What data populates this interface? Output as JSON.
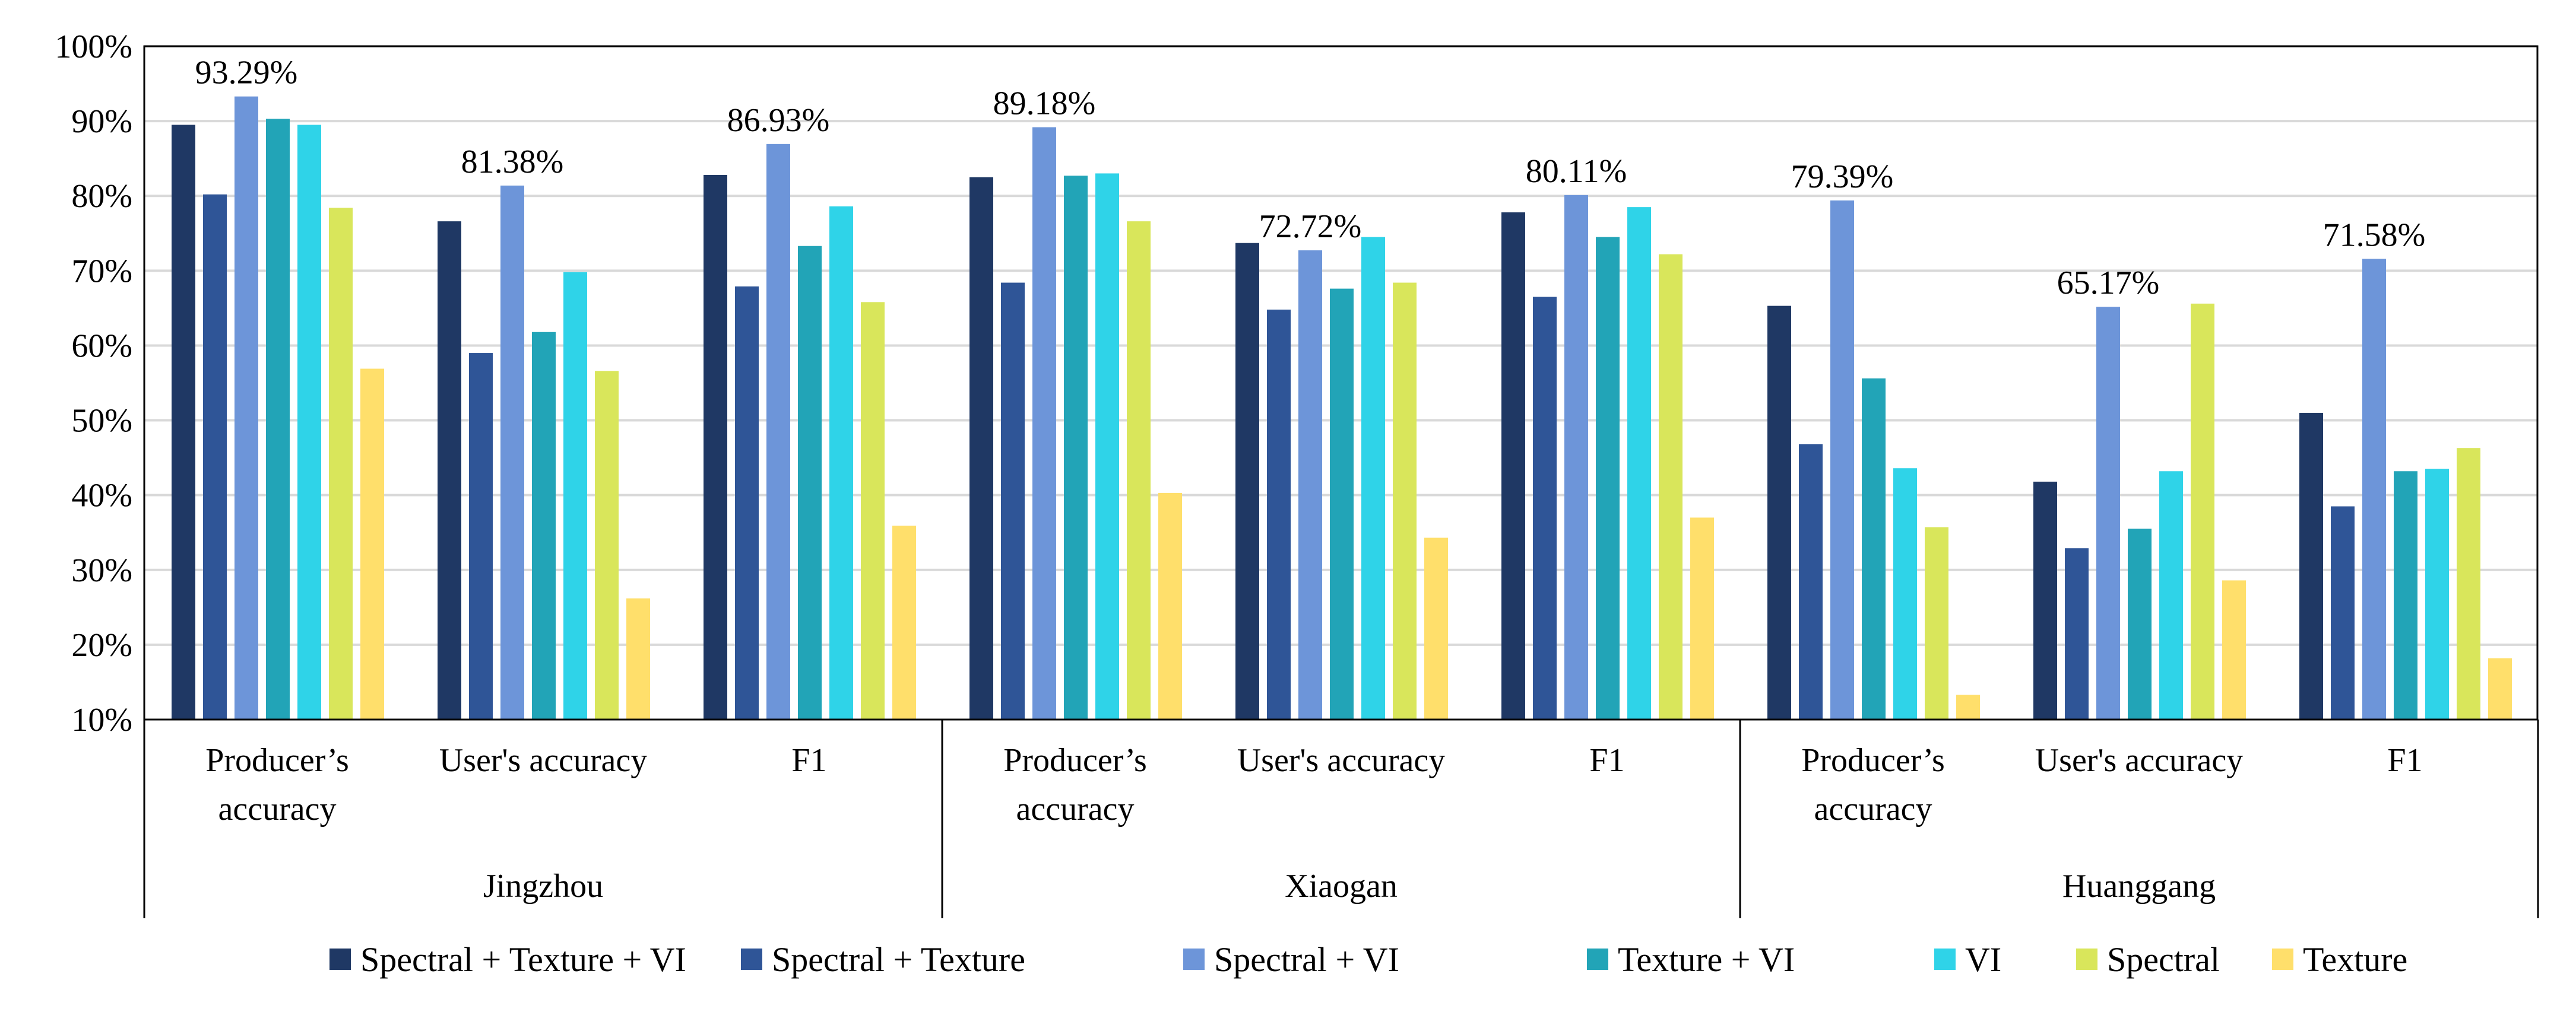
{
  "chart_data": {
    "type": "bar",
    "title": "",
    "xlabel": "",
    "ylabel": "",
    "ylim": [
      10,
      100
    ],
    "y_ticks": [
      "10%",
      "20%",
      "30%",
      "40%",
      "50%",
      "60%",
      "70%",
      "80%",
      "90%",
      "100%"
    ],
    "y_tick_values": [
      10,
      20,
      30,
      40,
      50,
      60,
      70,
      80,
      90,
      100
    ],
    "grid": true,
    "legend_position": "bottom",
    "groups": [
      {
        "name": "Jingzhou",
        "categories": [
          {
            "label_lines": [
              "Producer’s",
              "accuracy"
            ]
          },
          {
            "label_lines": [
              "User's accuracy"
            ]
          },
          {
            "label_lines": [
              "F1"
            ]
          }
        ]
      },
      {
        "name": "Xiaogan",
        "categories": [
          {
            "label_lines": [
              "Producer’s",
              "accuracy"
            ]
          },
          {
            "label_lines": [
              "User's accuracy"
            ]
          },
          {
            "label_lines": [
              "F1"
            ]
          }
        ]
      },
      {
        "name": "Huanggang",
        "categories": [
          {
            "label_lines": [
              "Producer’s",
              "accuracy"
            ]
          },
          {
            "label_lines": [
              "User's accuracy"
            ]
          },
          {
            "label_lines": [
              "F1"
            ]
          }
        ]
      }
    ],
    "series": [
      {
        "name": "Spectral + Texture + VI",
        "color": "#1f3864",
        "values": [
          89.5,
          76.6,
          82.8,
          82.5,
          73.7,
          77.8,
          65.3,
          41.8,
          51.0
        ]
      },
      {
        "name": "Spectral + Texture",
        "color": "#2f5597",
        "values": [
          80.2,
          59.0,
          67.9,
          68.4,
          64.8,
          66.5,
          46.8,
          32.9,
          38.5
        ]
      },
      {
        "name": "Spectral + VI",
        "color": "#6d95d9",
        "values": [
          93.29,
          81.38,
          86.93,
          89.18,
          72.72,
          80.11,
          79.39,
          65.17,
          71.58
        ]
      },
      {
        "name": "Texture + VI",
        "color": "#22a4b7",
        "values": [
          90.3,
          61.8,
          73.3,
          82.7,
          67.6,
          74.5,
          55.6,
          35.5,
          43.2
        ]
      },
      {
        "name": "VI",
        "color": "#2fd3e8",
        "values": [
          89.5,
          69.8,
          78.6,
          83.0,
          74.5,
          78.5,
          43.6,
          43.2,
          43.5
        ]
      },
      {
        "name": "Spectral",
        "color": "#d9e65b",
        "values": [
          78.4,
          56.6,
          65.8,
          76.6,
          68.4,
          72.2,
          35.7,
          65.6,
          46.3
        ]
      },
      {
        "name": "Texture",
        "color": "#ffdf6b",
        "values": [
          56.9,
          26.2,
          35.9,
          40.3,
          34.3,
          37.0,
          13.3,
          28.6,
          18.2
        ]
      }
    ],
    "annotations": [
      {
        "text": "93.29%",
        "category_index": 0,
        "series_index": 2
      },
      {
        "text": "81.38%",
        "category_index": 1,
        "series_index": 2
      },
      {
        "text": "86.93%",
        "category_index": 2,
        "series_index": 2
      },
      {
        "text": "89.18%",
        "category_index": 3,
        "series_index": 2
      },
      {
        "text": "72.72%",
        "category_index": 4,
        "series_index": 2
      },
      {
        "text": "80.11%",
        "category_index": 5,
        "series_index": 2
      },
      {
        "text": "79.39%",
        "category_index": 6,
        "series_index": 2
      },
      {
        "text": "65.17%",
        "category_index": 7,
        "series_index": 2
      },
      {
        "text": "71.58%",
        "category_index": 8,
        "series_index": 2
      }
    ]
  }
}
